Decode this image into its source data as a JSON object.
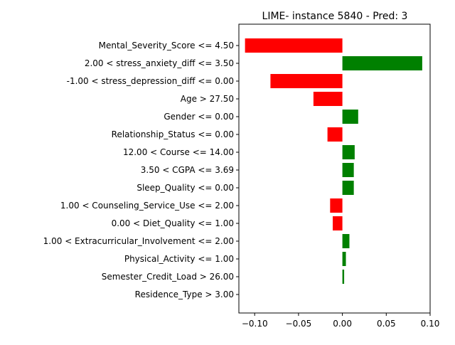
{
  "chart_data": {
    "type": "bar",
    "orientation": "horizontal",
    "title": "LIME- instance 5840 - Pred: 3",
    "xlabel": "",
    "ylabel": "",
    "xlim": [
      -0.118,
      0.1
    ],
    "xticks": [
      -0.1,
      -0.05,
      0.0,
      0.05,
      0.1
    ],
    "xtick_labels": [
      "−0.10",
      "−0.05",
      "0.00",
      "0.05",
      "0.10"
    ],
    "grid": false,
    "colors": {
      "negative": "#ff0000",
      "positive": "#008000"
    },
    "categories": [
      "Mental_Severity_Score <= 4.50",
      "2.00 < stress_anxiety_diff <= 3.50",
      "-1.00 < stress_depression_diff <= 0.00",
      "Age > 27.50",
      "Gender <= 0.00",
      "Relationship_Status <= 0.00",
      "12.00 < Course <= 14.00",
      "3.50 < CGPA <= 3.69",
      "Sleep_Quality <= 0.00",
      "1.00 < Counseling_Service_Use <= 2.00",
      "0.00 < Diet_Quality <= 1.00",
      "1.00 < Extracurricular_Involvement <= 2.00",
      "Physical_Activity <= 1.00",
      "Semester_Credit_Load > 26.00",
      "Residence_Type > 3.00"
    ],
    "values": [
      -0.111,
      0.091,
      -0.082,
      -0.033,
      0.018,
      -0.017,
      0.014,
      0.013,
      0.013,
      -0.014,
      -0.011,
      0.008,
      0.004,
      0.002,
      0.0
    ]
  }
}
